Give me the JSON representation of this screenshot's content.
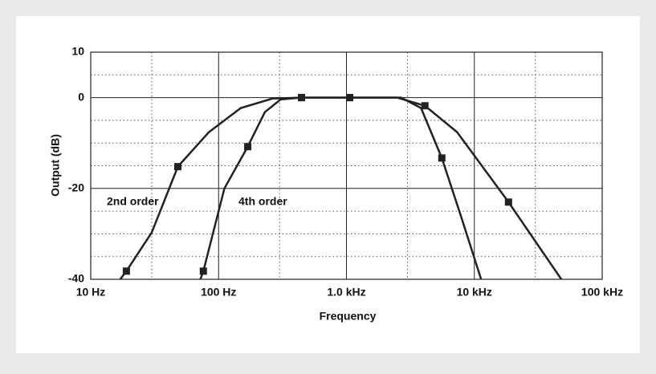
{
  "chart_data": {
    "type": "line",
    "xlabel": "Frequency",
    "ylabel": "Output (dB)",
    "xscale": "log",
    "grid": true,
    "xlim": [
      10,
      100000
    ],
    "ylim": [
      -40,
      10
    ],
    "xticks": [
      {
        "value": 10,
        "label": "10 Hz"
      },
      {
        "value": 100,
        "label": "100 Hz"
      },
      {
        "value": 1000,
        "label": "1.0 kHz"
      },
      {
        "value": 10000,
        "label": "10 kHz"
      },
      {
        "value": 100000,
        "label": "100 kHz"
      }
    ],
    "yticks": [
      10,
      0,
      -20,
      -40
    ],
    "xminor": [
      30,
      300,
      3000,
      30000
    ],
    "yminor": [
      5,
      -5,
      -10,
      -15,
      -25,
      -30,
      -35
    ],
    "series": [
      {
        "name": "2nd order",
        "color": "#222222",
        "x": [
          17,
          19,
          30,
          48,
          84,
          149,
          265,
          445,
          1060,
          2480,
          4110,
          7330,
          18500,
          47900
        ],
        "values": [
          -40,
          -38.2,
          -29.7,
          -15.2,
          -7.6,
          -2.3,
          -0.2,
          0,
          0,
          0,
          -1.8,
          -7.6,
          -23,
          -40
        ],
        "marker_x": [
          19,
          48,
          445,
          1060,
          4110,
          18500
        ],
        "marker_values": [
          -38.2,
          -15.2,
          0,
          0,
          -1.8,
          -23
        ]
      },
      {
        "name": "4th order",
        "color": "#222222",
        "x": [
          72,
          76,
          111,
          169,
          230,
          306,
          445,
          1060,
          2670,
          3830,
          5570,
          7880,
          11300
        ],
        "values": [
          -40,
          -38.2,
          -20,
          -10.8,
          -3.2,
          -0.4,
          0,
          0,
          0,
          -2.3,
          -13.3,
          -26.2,
          -40
        ],
        "marker_x": [
          76,
          169,
          445,
          1060,
          5570
        ],
        "marker_values": [
          -38.2,
          -10.8,
          0,
          0,
          -13.3
        ]
      }
    ]
  }
}
